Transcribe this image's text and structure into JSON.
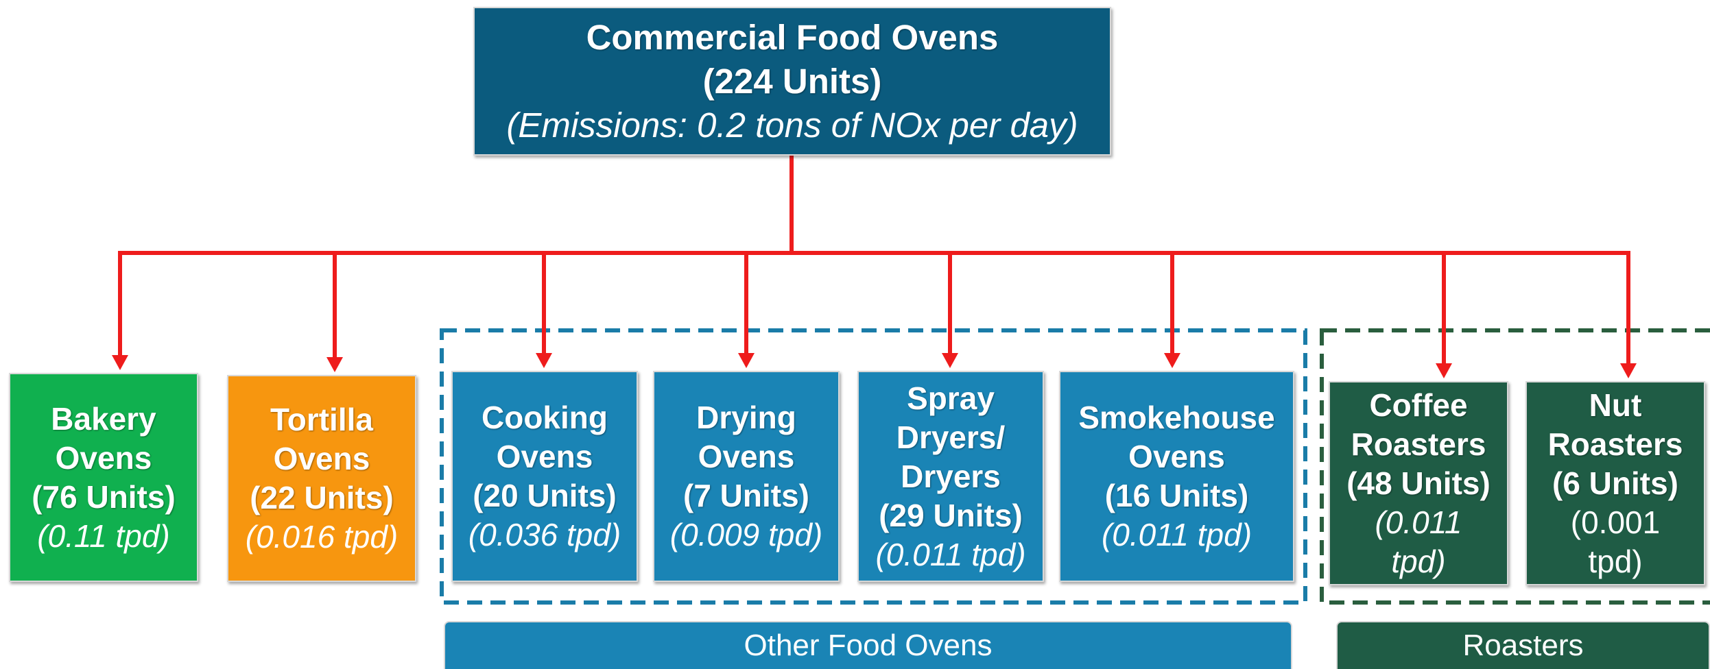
{
  "root": {
    "title_lines": [
      "Commercial Food Ovens",
      "(224 Units)"
    ],
    "detail_lines": [
      "(Emissions: 0.2 tons of NOx per day)"
    ],
    "color": "#0b5b7e"
  },
  "nodes": [
    {
      "title_lines": [
        "Bakery",
        "Ovens",
        "(76 Units)"
      ],
      "detail_lines": [
        "(0.11 tpd)"
      ],
      "color": "#10b04f",
      "italic": true
    },
    {
      "title_lines": [
        "Tortilla",
        "Ovens",
        "(22 Units)"
      ],
      "detail_lines": [
        "(0.016 tpd)"
      ],
      "color": "#f7960f",
      "italic": true
    },
    {
      "title_lines": [
        "Cooking",
        "Ovens",
        "(20 Units)"
      ],
      "detail_lines": [
        "(0.036 tpd)"
      ],
      "color": "#1a84b5",
      "italic": true
    },
    {
      "title_lines": [
        "Drying",
        "Ovens",
        "(7 Units)"
      ],
      "detail_lines": [
        "(0.009 tpd)"
      ],
      "color": "#1a84b5",
      "italic": true
    },
    {
      "title_lines": [
        "Spray",
        "Dryers/",
        "Dryers",
        "(29 Units)"
      ],
      "detail_lines": [
        "(0.011 tpd)"
      ],
      "color": "#1a84b5",
      "italic": true
    },
    {
      "title_lines": [
        "Smokehouse",
        "Ovens",
        "(16 Units)"
      ],
      "detail_lines": [
        "(0.011 tpd)"
      ],
      "color": "#1a84b5",
      "italic": true
    },
    {
      "title_lines": [
        "Coffee",
        "Roasters",
        "(48 Units)"
      ],
      "detail_lines": [
        "(0.011",
        "tpd)"
      ],
      "color": "#1f5c45",
      "italic": true
    },
    {
      "title_lines": [
        "Nut",
        "Roasters",
        "(6 Units)"
      ],
      "detail_lines": [
        "(0.001",
        "tpd)"
      ],
      "color": "#1f5c45",
      "italic": false
    }
  ],
  "groups": [
    {
      "label": "Other Food Ovens",
      "color": "#1a84b5"
    },
    {
      "label": "Roasters",
      "color": "#1f5c45"
    }
  ]
}
